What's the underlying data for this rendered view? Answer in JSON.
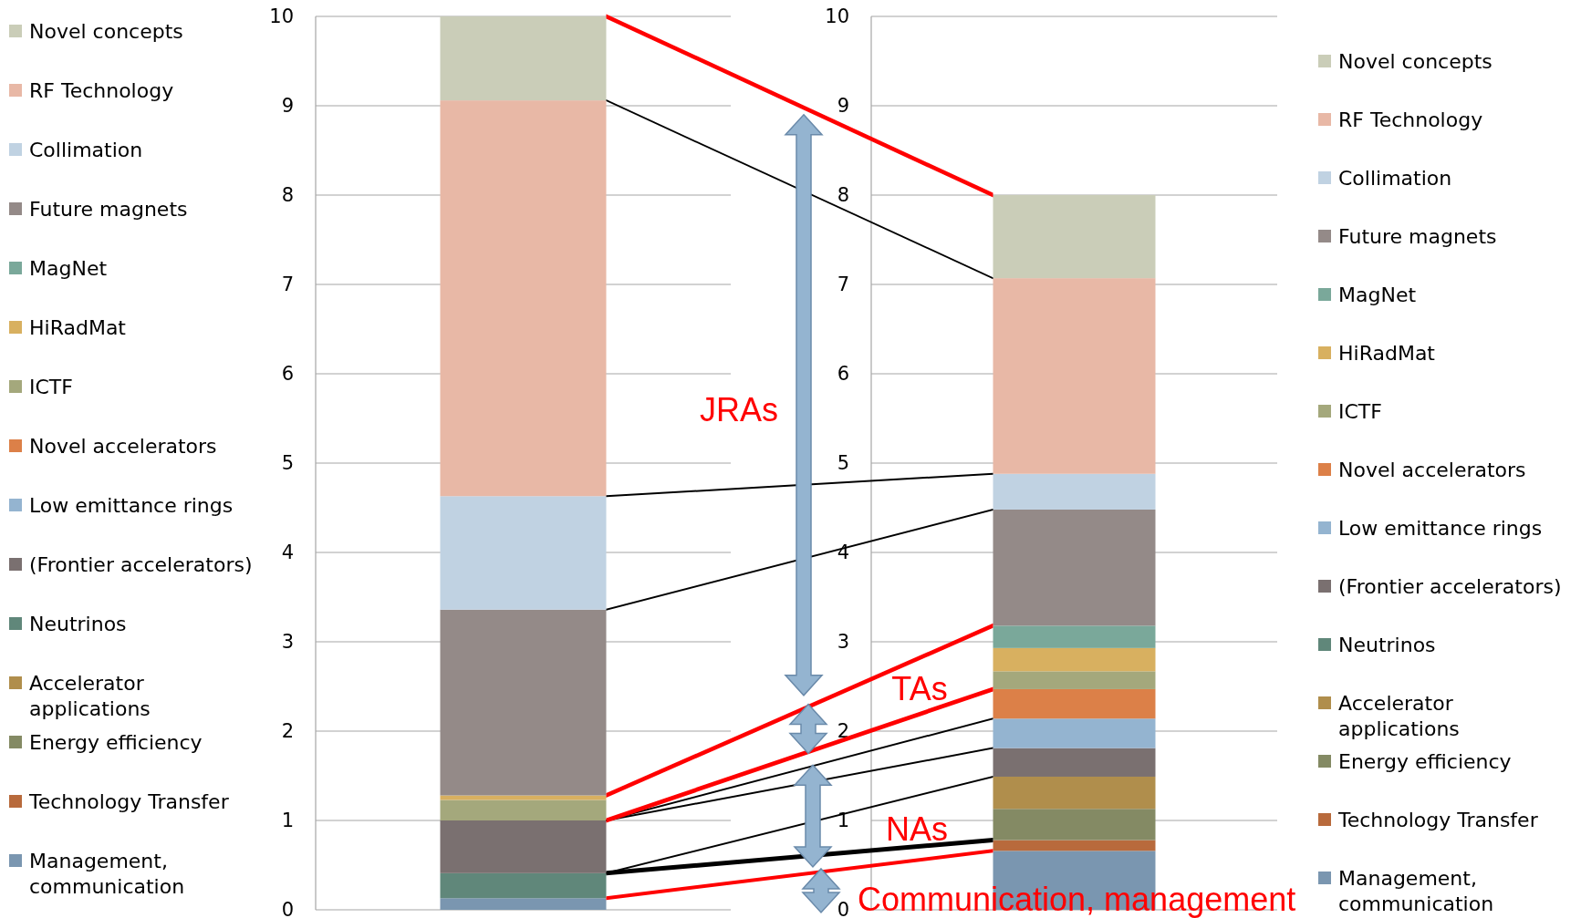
{
  "chart_data": [
    {
      "type": "bar",
      "stacked": true,
      "categories": [
        null
      ],
      "ylim": [
        0,
        10
      ],
      "yticks": [
        0,
        1,
        2,
        3,
        4,
        5,
        6,
        7,
        8,
        9,
        10
      ],
      "grid": "y",
      "tick_labels": "y",
      "legend": "left",
      "annotations": [
        "JRAs",
        "TAs",
        "NAs",
        "Communication, management"
      ],
      "series": [
        {
          "name": "Management, communication",
          "color": "#7a96b0",
          "values": [
            0.13
          ]
        },
        {
          "name": "Technology Transfer",
          "color": "#b86a3c",
          "values": [
            0
          ]
        },
        {
          "name": "Energy efficiency",
          "color": "#848a64",
          "values": [
            0
          ]
        },
        {
          "name": "Accelerator applications",
          "color": "#b08e4c",
          "values": [
            0
          ]
        },
        {
          "name": "Neutrinos",
          "color": "#60877a",
          "values": [
            0.28
          ]
        },
        {
          "name": "(Frontier accelerators)",
          "color": "#7a7070",
          "values": [
            0.59
          ]
        },
        {
          "name": "Low emittance rings",
          "color": "#94b4d0",
          "values": [
            0
          ]
        },
        {
          "name": "Novel accelerators",
          "color": "#dc8048",
          "values": [
            0
          ]
        },
        {
          "name": "ICTF",
          "color": "#a4a87c",
          "values": [
            0.23
          ]
        },
        {
          "name": "HiRadMat",
          "color": "#d8b060",
          "values": [
            0.05
          ]
        },
        {
          "name": "MagNet",
          "color": "#7aa89a",
          "values": [
            0
          ]
        },
        {
          "name": "Future magnets",
          "color": "#948a88",
          "values": [
            2.08
          ]
        },
        {
          "name": "Collimation",
          "color": "#c0d2e2",
          "values": [
            1.27
          ]
        },
        {
          "name": "RF Technology",
          "color": "#e8b8a6",
          "values": [
            4.43
          ]
        },
        {
          "name": "Novel concepts",
          "color": "#cacdb8",
          "values": [
            0.94
          ]
        }
      ]
    },
    {
      "type": "bar",
      "stacked": true,
      "categories": [
        null
      ],
      "ylim": [
        0,
        10
      ],
      "yticks": [
        0,
        1,
        2,
        3,
        4,
        5,
        6,
        7,
        8,
        9,
        10
      ],
      "grid": "y",
      "tick_labels": "y",
      "legend": "right",
      "series": [
        {
          "name": "Management, communication",
          "color": "#7a96b0",
          "values": [
            0.66
          ]
        },
        {
          "name": "Technology Transfer",
          "color": "#b86a3c",
          "values": [
            0.12
          ]
        },
        {
          "name": "Energy efficiency",
          "color": "#848a64",
          "values": [
            0.35
          ]
        },
        {
          "name": "Accelerator applications",
          "color": "#b08e4c",
          "values": [
            0.36
          ]
        },
        {
          "name": "Neutrinos",
          "color": "#60877a",
          "values": [
            0
          ]
        },
        {
          "name": "(Frontier accelerators)",
          "color": "#7a7070",
          "values": [
            0.32
          ]
        },
        {
          "name": "Low emittance rings",
          "color": "#94b4d0",
          "values": [
            0.33
          ]
        },
        {
          "name": "Novel accelerators",
          "color": "#dc8048",
          "values": [
            0.33
          ]
        },
        {
          "name": "ICTF",
          "color": "#a4a87c",
          "values": [
            0.2
          ]
        },
        {
          "name": "HiRadMat",
          "color": "#d8b060",
          "values": [
            0.26
          ]
        },
        {
          "name": "MagNet",
          "color": "#7aa89a",
          "values": [
            0.25
          ]
        },
        {
          "name": "Future magnets",
          "color": "#948a88",
          "values": [
            1.3
          ]
        },
        {
          "name": "Collimation",
          "color": "#c0d2e2",
          "values": [
            0.4
          ]
        },
        {
          "name": "RF Technology",
          "color": "#e8b8a6",
          "values": [
            2.19
          ]
        },
        {
          "name": "Novel concepts",
          "color": "#cacdb8",
          "values": [
            0.93
          ]
        }
      ]
    }
  ]
}
